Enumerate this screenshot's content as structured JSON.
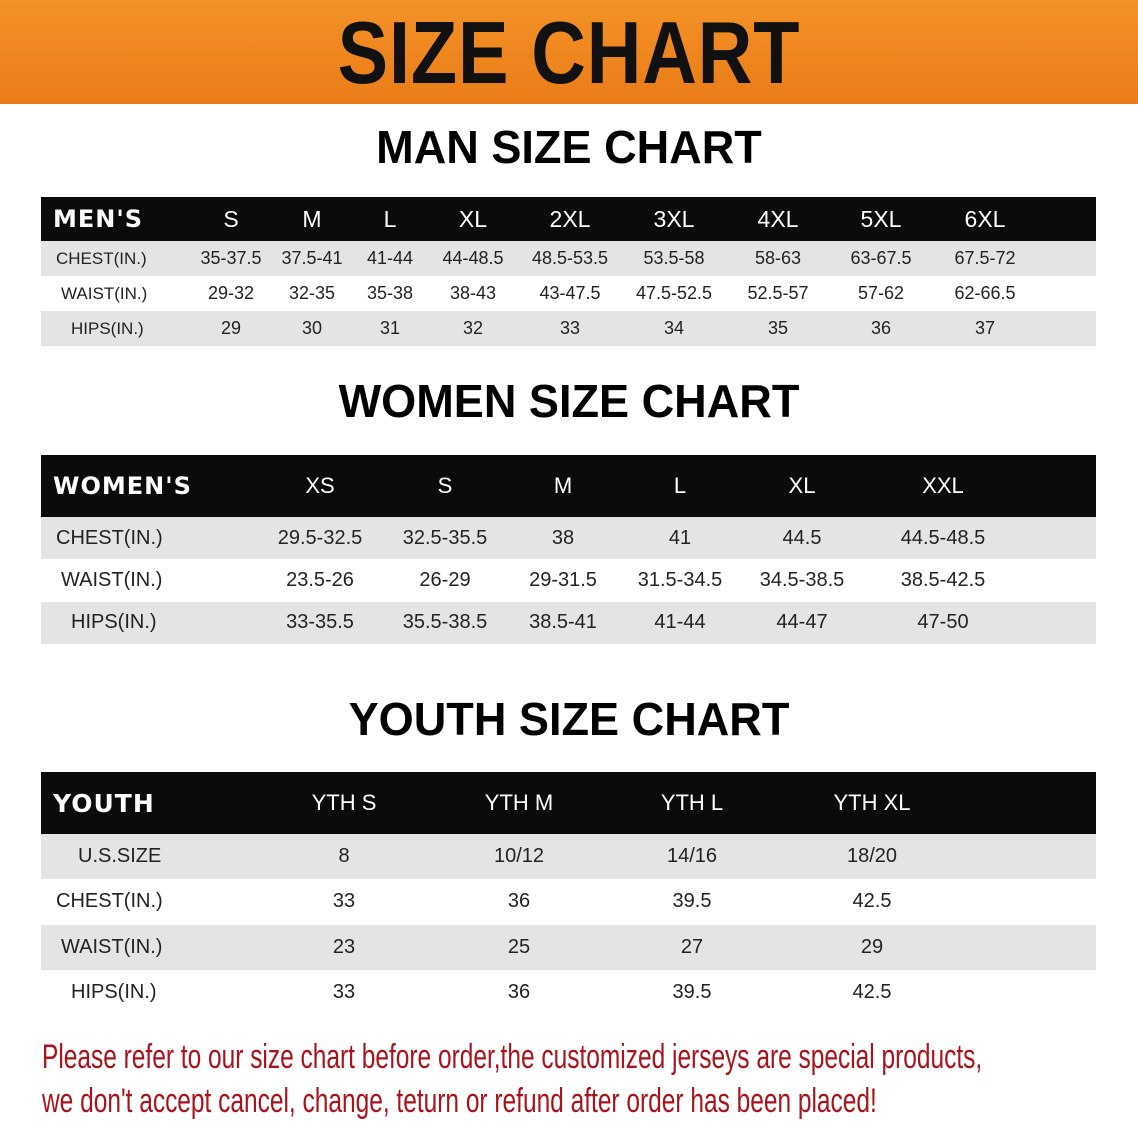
{
  "banner": {
    "title": "SIZE CHART",
    "color": "#ee8520"
  },
  "men": {
    "title": "MAN SIZE CHART",
    "header_label": "MEN'S",
    "sizes": [
      "S",
      "M",
      "L",
      "XL",
      "2XL",
      "3XL",
      "4XL",
      "5XL",
      "6XL"
    ],
    "rows": [
      {
        "label": "CHEST(IN.)",
        "values": [
          "35-37.5",
          "37.5-41",
          "41-44",
          "44-48.5",
          "48.5-53.5",
          "53.5-58",
          "58-63",
          "63-67.5",
          "67.5-72"
        ]
      },
      {
        "label": "WAIST(IN.)",
        "values": [
          "29-32",
          "32-35",
          "35-38",
          "38-43",
          "43-47.5",
          "47.5-52.5",
          "52.5-57",
          "57-62",
          "62-66.5"
        ]
      },
      {
        "label": "HIPS(IN.)",
        "values": [
          "29",
          "30",
          "31",
          "32",
          "33",
          "34",
          "35",
          "36",
          "37"
        ]
      }
    ]
  },
  "women": {
    "title": "WOMEN SIZE CHART",
    "header_label": "WOMEN'S",
    "sizes": [
      "XS",
      "S",
      "M",
      "L",
      "XL",
      "XXL"
    ],
    "rows": [
      {
        "label": "CHEST(IN.)",
        "values": [
          "29.5-32.5",
          "32.5-35.5",
          "38",
          "41",
          "44.5",
          "44.5-48.5"
        ]
      },
      {
        "label": "WAIST(IN.)",
        "values": [
          "23.5-26",
          "26-29",
          "29-31.5",
          "31.5-34.5",
          "34.5-38.5",
          "38.5-42.5"
        ]
      },
      {
        "label": "HIPS(IN.)",
        "values": [
          "33-35.5",
          "35.5-38.5",
          "38.5-41",
          "41-44",
          "44-47",
          "47-50"
        ]
      }
    ]
  },
  "youth": {
    "title": "YOUTH SIZE CHART",
    "header_label": "YOUTH",
    "sizes": [
      "YTH S",
      "YTH M",
      "YTH L",
      "YTH XL"
    ],
    "rows": [
      {
        "label": "U.S.SIZE",
        "values": [
          "8",
          "10/12",
          "14/16",
          "18/20"
        ]
      },
      {
        "label": "CHEST(IN.)",
        "values": [
          "33",
          "36",
          "39.5",
          "42.5"
        ]
      },
      {
        "label": "WAIST(IN.)",
        "values": [
          "23",
          "25",
          "27",
          "29"
        ]
      },
      {
        "label": "HIPS(IN.)",
        "values": [
          "33",
          "36",
          "39.5",
          "42.5"
        ]
      }
    ]
  },
  "notice": {
    "line1": "Please refer to our size chart before order,the customized jerseys are special products,",
    "line2": "we don't accept cancel, change, teturn or refund after order has been placed!",
    "color": "#a8141c"
  }
}
